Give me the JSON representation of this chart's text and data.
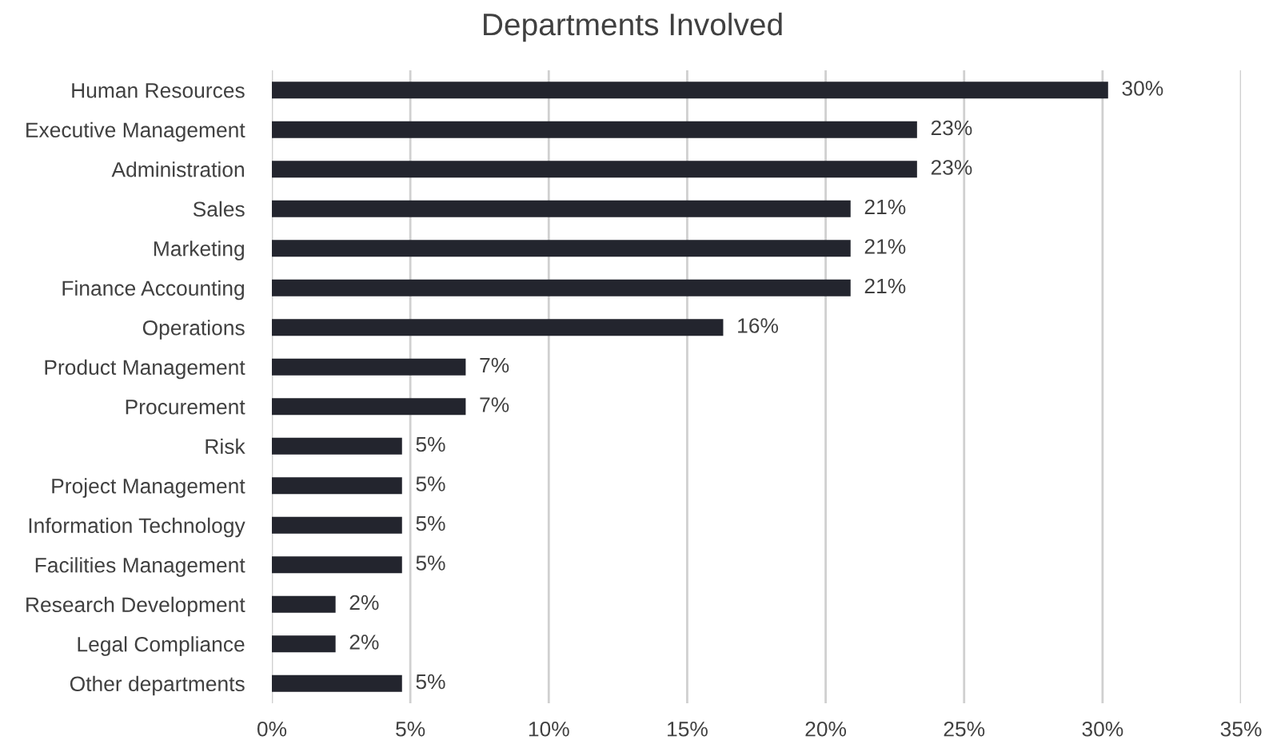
{
  "chart_data": {
    "type": "bar",
    "orientation": "horizontal",
    "title": "Departments Involved",
    "categories": [
      "Human Resources",
      "Executive Management",
      "Administration",
      "Sales",
      "Marketing",
      "Finance Accounting",
      "Operations",
      "Product Management",
      "Procurement",
      "Risk",
      "Project Management",
      "Information Technology",
      "Facilities Management",
      "Research Development",
      "Legal Compliance",
      "Other departments"
    ],
    "values": [
      30.2,
      23.3,
      23.3,
      20.9,
      20.9,
      20.9,
      16.3,
      7.0,
      7.0,
      4.7,
      4.7,
      4.7,
      4.7,
      2.3,
      2.3,
      4.7
    ],
    "value_labels": [
      "30%",
      "23%",
      "23%",
      "21%",
      "21%",
      "21%",
      "16%",
      "7%",
      "7%",
      "5%",
      "5%",
      "5%",
      "5%",
      "2%",
      "2%",
      "5%"
    ],
    "color": "#23252e",
    "xlim": [
      0,
      35
    ],
    "xticks": [
      {
        "value": 0,
        "label": "0%"
      },
      {
        "value": 5,
        "label": "5%"
      },
      {
        "value": 10,
        "label": "10%"
      },
      {
        "value": 15,
        "label": "15%"
      },
      {
        "value": 20,
        "label": "20%"
      },
      {
        "value": 25,
        "label": "25%"
      },
      {
        "value": 30,
        "label": "30%"
      },
      {
        "value": 35,
        "label": "35%"
      }
    ],
    "grid": "x",
    "legend": false
  }
}
